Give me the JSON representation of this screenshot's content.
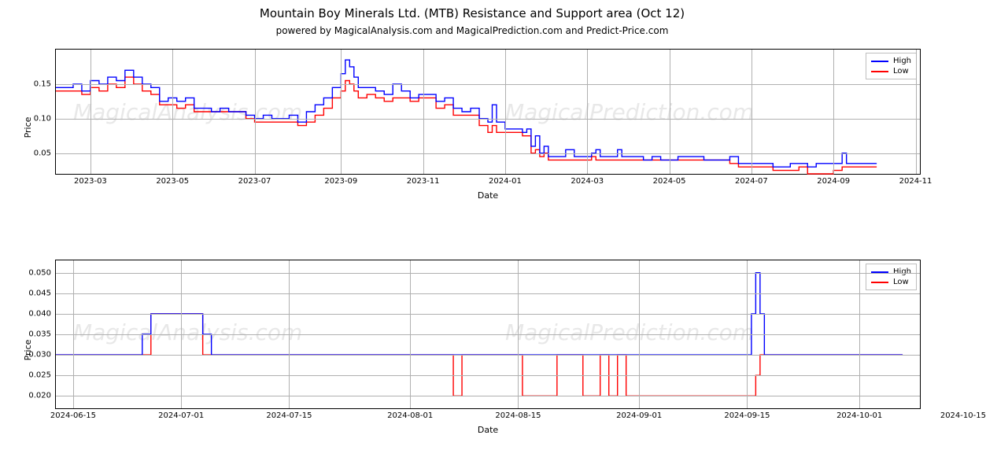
{
  "title": "Mountain Boy Minerals Ltd. (MTB) Resistance and Support area (Oct 12)",
  "subtitle": "powered by MagicalAnalysis.com and MagicalPrediction.com and Predict-Price.com",
  "watermark_texts": [
    "MagicalAnalysis.com",
    "MagicalPrediction.com"
  ],
  "legend": {
    "high": "High",
    "low": "Low"
  },
  "colors": {
    "high": "#0000ff",
    "low": "#ff0000",
    "grid": "#b0b0b0",
    "border": "#000000",
    "text": "#000000",
    "watermark": "#e8e8e8",
    "background": "#ffffff"
  },
  "panel1": {
    "ylabel": "Price",
    "xlabel": "Date",
    "ylim": [
      0.02,
      0.2
    ],
    "yticks": [
      0.05,
      0.1,
      0.15
    ],
    "xticks": [
      "2023-03",
      "2023-05",
      "2023-07",
      "2023-09",
      "2023-11",
      "2024-01",
      "2024-03",
      "2024-05",
      "2024-07",
      "2024-09",
      "2024-11"
    ],
    "xtick_pos": [
      0.04,
      0.135,
      0.23,
      0.33,
      0.425,
      0.52,
      0.615,
      0.71,
      0.805,
      0.9,
      0.995
    ],
    "high_series": [
      [
        0.0,
        0.145
      ],
      [
        0.02,
        0.15
      ],
      [
        0.03,
        0.14
      ],
      [
        0.04,
        0.155
      ],
      [
        0.05,
        0.15
      ],
      [
        0.06,
        0.16
      ],
      [
        0.07,
        0.155
      ],
      [
        0.08,
        0.17
      ],
      [
        0.09,
        0.16
      ],
      [
        0.1,
        0.15
      ],
      [
        0.11,
        0.145
      ],
      [
        0.12,
        0.125
      ],
      [
        0.13,
        0.13
      ],
      [
        0.14,
        0.125
      ],
      [
        0.15,
        0.13
      ],
      [
        0.16,
        0.115
      ],
      [
        0.17,
        0.115
      ],
      [
        0.18,
        0.11
      ],
      [
        0.19,
        0.115
      ],
      [
        0.2,
        0.11
      ],
      [
        0.21,
        0.11
      ],
      [
        0.22,
        0.105
      ],
      [
        0.23,
        0.1
      ],
      [
        0.24,
        0.105
      ],
      [
        0.25,
        0.1
      ],
      [
        0.26,
        0.1
      ],
      [
        0.27,
        0.105
      ],
      [
        0.28,
        0.095
      ],
      [
        0.29,
        0.11
      ],
      [
        0.3,
        0.12
      ],
      [
        0.31,
        0.13
      ],
      [
        0.32,
        0.145
      ],
      [
        0.33,
        0.165
      ],
      [
        0.335,
        0.185
      ],
      [
        0.34,
        0.175
      ],
      [
        0.345,
        0.16
      ],
      [
        0.35,
        0.145
      ],
      [
        0.36,
        0.145
      ],
      [
        0.37,
        0.14
      ],
      [
        0.38,
        0.135
      ],
      [
        0.39,
        0.15
      ],
      [
        0.4,
        0.14
      ],
      [
        0.41,
        0.13
      ],
      [
        0.42,
        0.135
      ],
      [
        0.43,
        0.135
      ],
      [
        0.44,
        0.125
      ],
      [
        0.45,
        0.13
      ],
      [
        0.46,
        0.115
      ],
      [
        0.47,
        0.11
      ],
      [
        0.48,
        0.115
      ],
      [
        0.49,
        0.1
      ],
      [
        0.5,
        0.095
      ],
      [
        0.505,
        0.12
      ],
      [
        0.51,
        0.095
      ],
      [
        0.52,
        0.085
      ],
      [
        0.53,
        0.085
      ],
      [
        0.54,
        0.08
      ],
      [
        0.545,
        0.085
      ],
      [
        0.55,
        0.06
      ],
      [
        0.555,
        0.075
      ],
      [
        0.56,
        0.05
      ],
      [
        0.565,
        0.06
      ],
      [
        0.57,
        0.045
      ],
      [
        0.58,
        0.045
      ],
      [
        0.59,
        0.055
      ],
      [
        0.6,
        0.045
      ],
      [
        0.61,
        0.045
      ],
      [
        0.62,
        0.05
      ],
      [
        0.625,
        0.055
      ],
      [
        0.63,
        0.045
      ],
      [
        0.64,
        0.045
      ],
      [
        0.65,
        0.055
      ],
      [
        0.655,
        0.045
      ],
      [
        0.67,
        0.045
      ],
      [
        0.68,
        0.04
      ],
      [
        0.69,
        0.045
      ],
      [
        0.7,
        0.04
      ],
      [
        0.71,
        0.04
      ],
      [
        0.72,
        0.045
      ],
      [
        0.75,
        0.04
      ],
      [
        0.77,
        0.04
      ],
      [
        0.78,
        0.045
      ],
      [
        0.79,
        0.035
      ],
      [
        0.8,
        0.035
      ],
      [
        0.82,
        0.035
      ],
      [
        0.83,
        0.03
      ],
      [
        0.85,
        0.035
      ],
      [
        0.86,
        0.035
      ],
      [
        0.87,
        0.03
      ],
      [
        0.88,
        0.035
      ],
      [
        0.9,
        0.035
      ],
      [
        0.91,
        0.05
      ],
      [
        0.915,
        0.035
      ],
      [
        0.93,
        0.035
      ],
      [
        0.95,
        0.035
      ]
    ],
    "low_series": [
      [
        0.0,
        0.14
      ],
      [
        0.02,
        0.14
      ],
      [
        0.03,
        0.135
      ],
      [
        0.04,
        0.145
      ],
      [
        0.05,
        0.14
      ],
      [
        0.06,
        0.15
      ],
      [
        0.07,
        0.145
      ],
      [
        0.08,
        0.16
      ],
      [
        0.09,
        0.15
      ],
      [
        0.1,
        0.14
      ],
      [
        0.11,
        0.135
      ],
      [
        0.12,
        0.12
      ],
      [
        0.13,
        0.12
      ],
      [
        0.14,
        0.115
      ],
      [
        0.15,
        0.12
      ],
      [
        0.16,
        0.11
      ],
      [
        0.17,
        0.11
      ],
      [
        0.18,
        0.11
      ],
      [
        0.19,
        0.11
      ],
      [
        0.2,
        0.11
      ],
      [
        0.21,
        0.11
      ],
      [
        0.22,
        0.1
      ],
      [
        0.23,
        0.095
      ],
      [
        0.24,
        0.095
      ],
      [
        0.25,
        0.095
      ],
      [
        0.26,
        0.095
      ],
      [
        0.27,
        0.095
      ],
      [
        0.28,
        0.09
      ],
      [
        0.29,
        0.095
      ],
      [
        0.3,
        0.105
      ],
      [
        0.31,
        0.115
      ],
      [
        0.32,
        0.13
      ],
      [
        0.33,
        0.14
      ],
      [
        0.335,
        0.155
      ],
      [
        0.34,
        0.15
      ],
      [
        0.345,
        0.14
      ],
      [
        0.35,
        0.13
      ],
      [
        0.36,
        0.135
      ],
      [
        0.37,
        0.13
      ],
      [
        0.38,
        0.125
      ],
      [
        0.39,
        0.13
      ],
      [
        0.4,
        0.13
      ],
      [
        0.41,
        0.125
      ],
      [
        0.42,
        0.13
      ],
      [
        0.43,
        0.13
      ],
      [
        0.44,
        0.115
      ],
      [
        0.45,
        0.12
      ],
      [
        0.46,
        0.105
      ],
      [
        0.47,
        0.105
      ],
      [
        0.48,
        0.105
      ],
      [
        0.49,
        0.09
      ],
      [
        0.5,
        0.08
      ],
      [
        0.505,
        0.09
      ],
      [
        0.51,
        0.08
      ],
      [
        0.52,
        0.08
      ],
      [
        0.53,
        0.08
      ],
      [
        0.54,
        0.075
      ],
      [
        0.545,
        0.075
      ],
      [
        0.55,
        0.05
      ],
      [
        0.555,
        0.055
      ],
      [
        0.56,
        0.045
      ],
      [
        0.565,
        0.05
      ],
      [
        0.57,
        0.04
      ],
      [
        0.58,
        0.04
      ],
      [
        0.59,
        0.04
      ],
      [
        0.6,
        0.04
      ],
      [
        0.61,
        0.04
      ],
      [
        0.62,
        0.045
      ],
      [
        0.625,
        0.04
      ],
      [
        0.63,
        0.04
      ],
      [
        0.64,
        0.04
      ],
      [
        0.65,
        0.04
      ],
      [
        0.655,
        0.04
      ],
      [
        0.67,
        0.04
      ],
      [
        0.68,
        0.04
      ],
      [
        0.69,
        0.04
      ],
      [
        0.7,
        0.04
      ],
      [
        0.71,
        0.04
      ],
      [
        0.72,
        0.04
      ],
      [
        0.75,
        0.04
      ],
      [
        0.77,
        0.04
      ],
      [
        0.78,
        0.035
      ],
      [
        0.79,
        0.03
      ],
      [
        0.8,
        0.03
      ],
      [
        0.82,
        0.03
      ],
      [
        0.83,
        0.025
      ],
      [
        0.85,
        0.025
      ],
      [
        0.86,
        0.03
      ],
      [
        0.87,
        0.02
      ],
      [
        0.88,
        0.02
      ],
      [
        0.9,
        0.025
      ],
      [
        0.91,
        0.03
      ],
      [
        0.915,
        0.03
      ],
      [
        0.93,
        0.03
      ],
      [
        0.95,
        0.03
      ]
    ]
  },
  "panel2": {
    "ylabel": "Price",
    "xlabel": "Date",
    "ylim": [
      0.017,
      0.053
    ],
    "yticks": [
      0.02,
      0.025,
      0.03,
      0.035,
      0.04,
      0.045,
      0.05
    ],
    "xticks": [
      "2024-06-15",
      "2024-07-01",
      "2024-07-15",
      "2024-08-01",
      "2024-08-15",
      "2024-09-01",
      "2024-09-15",
      "2024-10-01",
      "2024-10-15"
    ],
    "xtick_pos": [
      0.02,
      0.145,
      0.27,
      0.41,
      0.535,
      0.675,
      0.8,
      0.93,
      1.05
    ],
    "high_series": [
      [
        0.0,
        0.03
      ],
      [
        0.05,
        0.03
      ],
      [
        0.08,
        0.03
      ],
      [
        0.1,
        0.035
      ],
      [
        0.11,
        0.04
      ],
      [
        0.12,
        0.04
      ],
      [
        0.16,
        0.04
      ],
      [
        0.17,
        0.035
      ],
      [
        0.18,
        0.03
      ],
      [
        0.2,
        0.03
      ],
      [
        0.4,
        0.03
      ],
      [
        0.45,
        0.03
      ],
      [
        0.46,
        0.03
      ],
      [
        0.47,
        0.03
      ],
      [
        0.5,
        0.03
      ],
      [
        0.52,
        0.03
      ],
      [
        0.54,
        0.03
      ],
      [
        0.55,
        0.03
      ],
      [
        0.58,
        0.03
      ],
      [
        0.6,
        0.03
      ],
      [
        0.61,
        0.03
      ],
      [
        0.62,
        0.03
      ],
      [
        0.63,
        0.03
      ],
      [
        0.64,
        0.03
      ],
      [
        0.65,
        0.03
      ],
      [
        0.66,
        0.03
      ],
      [
        0.67,
        0.03
      ],
      [
        0.72,
        0.03
      ],
      [
        0.78,
        0.03
      ],
      [
        0.79,
        0.03
      ],
      [
        0.8,
        0.03
      ],
      [
        0.805,
        0.04
      ],
      [
        0.81,
        0.05
      ],
      [
        0.815,
        0.04
      ],
      [
        0.82,
        0.03
      ],
      [
        0.83,
        0.03
      ],
      [
        0.9,
        0.03
      ],
      [
        0.98,
        0.03
      ]
    ],
    "low_series": [
      [
        0.0,
        0.03
      ],
      [
        0.05,
        0.03
      ],
      [
        0.08,
        0.03
      ],
      [
        0.1,
        0.03
      ],
      [
        0.11,
        0.04
      ],
      [
        0.12,
        0.04
      ],
      [
        0.16,
        0.04
      ],
      [
        0.17,
        0.03
      ],
      [
        0.18,
        0.03
      ],
      [
        0.2,
        0.03
      ],
      [
        0.4,
        0.03
      ],
      [
        0.45,
        0.03
      ],
      [
        0.46,
        0.02
      ],
      [
        0.47,
        0.03
      ],
      [
        0.5,
        0.03
      ],
      [
        0.52,
        0.03
      ],
      [
        0.54,
        0.02
      ],
      [
        0.55,
        0.02
      ],
      [
        0.58,
        0.03
      ],
      [
        0.6,
        0.03
      ],
      [
        0.61,
        0.02
      ],
      [
        0.62,
        0.02
      ],
      [
        0.63,
        0.03
      ],
      [
        0.64,
        0.02
      ],
      [
        0.65,
        0.03
      ],
      [
        0.66,
        0.02
      ],
      [
        0.67,
        0.02
      ],
      [
        0.72,
        0.02
      ],
      [
        0.78,
        0.02
      ],
      [
        0.79,
        0.02
      ],
      [
        0.8,
        0.02
      ],
      [
        0.805,
        0.02
      ],
      [
        0.81,
        0.025
      ],
      [
        0.815,
        0.03
      ],
      [
        0.82,
        0.03
      ],
      [
        0.83,
        0.03
      ],
      [
        0.9,
        0.03
      ],
      [
        0.98,
        0.03
      ]
    ]
  }
}
